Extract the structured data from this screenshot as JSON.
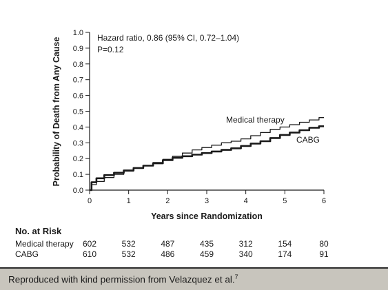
{
  "chart_data": {
    "type": "line",
    "xlabel": "Years since Randomization",
    "ylabel": "Probability of Death from Any Cause",
    "xlim": [
      0,
      6
    ],
    "ylim": [
      0,
      1.0
    ],
    "x_ticks": [
      0,
      1,
      2,
      3,
      4,
      5,
      6
    ],
    "x_tick_labels": [
      "0",
      "1",
      "2",
      "3",
      "4",
      "5",
      "6"
    ],
    "y_ticks": [
      0,
      0.1,
      0.2,
      0.3,
      0.4,
      0.5,
      0.6,
      0.7,
      0.8,
      0.9,
      1.0
    ],
    "y_tick_labels": [
      "0.0",
      "0.1",
      "0.2",
      "0.3",
      "0.4",
      "0.5",
      "0.6",
      "0.7",
      "0.8",
      "0.9",
      "1.0"
    ],
    "grid": false,
    "annotations": [
      "Hazard ratio, 0.86 (95% CI, 0.72–1.04)",
      "P=0.12"
    ],
    "series": [
      {
        "name": "Medical therapy",
        "x": [
          0,
          0.1,
          0.25,
          0.5,
          0.75,
          1.0,
          1.25,
          1.5,
          1.75,
          2.0,
          2.25,
          2.5,
          2.75,
          3.0,
          3.25,
          3.5,
          3.75,
          4.0,
          4.25,
          4.5,
          4.75,
          5.0,
          5.25,
          5.5,
          5.75,
          6.0
        ],
        "y": [
          0,
          0.035,
          0.055,
          0.08,
          0.1,
          0.12,
          0.14,
          0.155,
          0.175,
          0.195,
          0.215,
          0.235,
          0.255,
          0.27,
          0.285,
          0.3,
          0.31,
          0.325,
          0.345,
          0.365,
          0.385,
          0.4,
          0.415,
          0.43,
          0.445,
          0.46
        ]
      },
      {
        "name": "CABG",
        "x": [
          0,
          0.1,
          0.25,
          0.5,
          0.75,
          1.0,
          1.25,
          1.5,
          1.75,
          2.0,
          2.25,
          2.5,
          2.75,
          3.0,
          3.25,
          3.5,
          3.75,
          4.0,
          4.25,
          4.5,
          4.75,
          5.0,
          5.25,
          5.5,
          5.75,
          6.0
        ],
        "y": [
          0,
          0.05,
          0.075,
          0.095,
          0.11,
          0.125,
          0.14,
          0.155,
          0.17,
          0.19,
          0.205,
          0.215,
          0.225,
          0.235,
          0.245,
          0.255,
          0.265,
          0.28,
          0.295,
          0.31,
          0.33,
          0.35,
          0.365,
          0.38,
          0.395,
          0.405
        ]
      }
    ],
    "at_risk": {
      "heading": "No. at Risk",
      "rows": [
        {
          "label": "Medical therapy",
          "values": [
            "602",
            "532",
            "487",
            "435",
            "312",
            "154",
            "80"
          ]
        },
        {
          "label": "CABG",
          "values": [
            "610",
            "532",
            "486",
            "459",
            "340",
            "174",
            "91"
          ]
        }
      ]
    }
  },
  "caption": {
    "text": "Reproduced with kind permission from Velazquez et al.",
    "superscript": "7"
  },
  "colors": {
    "caption_bg": "#c8c5bd",
    "line": "#1a1a1a"
  }
}
